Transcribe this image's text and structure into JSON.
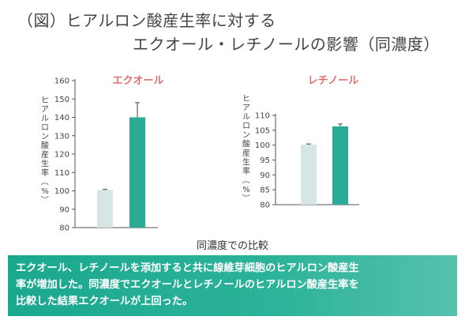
{
  "title": {
    "line1": "（図）ヒアルロン酸産生率に対する",
    "line2": "エクオール・レチノールの影響（同濃度）"
  },
  "xlabel": "同濃度での比較",
  "summary": {
    "line1": "エクオール、レチノールを添加すると共に線維芽細胞のヒアルロン酸産生",
    "line2": "率が増加した。同濃度でエクオールとレチノールのヒアルロン酸産生率を",
    "line3": "比較した結果エクオールが上回った。"
  },
  "colors": {
    "control_bar": "#d5e6e4",
    "treated_bar": "#2aab95",
    "title_red": "#e07070",
    "summary_bg": "#2cb39a"
  },
  "chart_data": [
    {
      "type": "bar",
      "title": "エクオール",
      "ylabel": "ヒアルロン酸産生率（%）",
      "ylim": [
        80,
        160
      ],
      "yticks": [
        "160",
        "150",
        "140",
        "130",
        "120",
        "110",
        "100",
        "90",
        "80"
      ],
      "values": [
        100.5,
        140
      ],
      "errors": [
        0.3,
        8
      ],
      "bar_colors": [
        "#d5e6e4",
        "#2aab95"
      ]
    },
    {
      "type": "bar",
      "title": "レチノール",
      "ylabel": "ヒアルロン酸産生率（%）",
      "ylim": [
        80,
        110
      ],
      "yticks": [
        "110",
        "105",
        "100",
        "95",
        "90",
        "85",
        "80"
      ],
      "values": [
        100.2,
        106.3
      ],
      "errors": [
        0.2,
        0.8
      ],
      "bar_colors": [
        "#d5e6e4",
        "#2aab95"
      ]
    }
  ]
}
